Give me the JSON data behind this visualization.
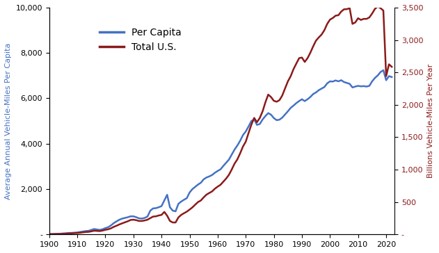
{
  "ylabel_left": "Average Annual Vehicle-Miles Per Capita",
  "ylabel_right": "Billions Vehicle-Miles Per Year",
  "left_color": "#4472C4",
  "right_color": "#8B1A1A",
  "legend_labels": [
    "Per Capita",
    "Total U.S."
  ],
  "ylim_left": [
    0,
    10000
  ],
  "ylim_right": [
    0,
    3500
  ],
  "xlim": [
    1900,
    2023
  ],
  "yticks_left": [
    0,
    2000,
    4000,
    6000,
    8000,
    10000
  ],
  "yticks_right": [
    0,
    500,
    1000,
    1500,
    2000,
    2500,
    3000,
    3500
  ],
  "xticks": [
    1900,
    1910,
    1920,
    1930,
    1940,
    1950,
    1960,
    1970,
    1980,
    1990,
    2000,
    2010,
    2020
  ],
  "per_capita": {
    "years": [
      1900,
      1901,
      1902,
      1903,
      1904,
      1905,
      1906,
      1907,
      1908,
      1909,
      1910,
      1911,
      1912,
      1913,
      1914,
      1915,
      1916,
      1917,
      1918,
      1919,
      1920,
      1921,
      1922,
      1923,
      1924,
      1925,
      1926,
      1927,
      1928,
      1929,
      1930,
      1931,
      1932,
      1933,
      1934,
      1935,
      1936,
      1937,
      1938,
      1939,
      1940,
      1941,
      1942,
      1943,
      1944,
      1945,
      1946,
      1947,
      1948,
      1949,
      1950,
      1951,
      1952,
      1953,
      1954,
      1955,
      1956,
      1957,
      1958,
      1959,
      1960,
      1961,
      1962,
      1963,
      1964,
      1965,
      1966,
      1967,
      1968,
      1969,
      1970,
      1971,
      1972,
      1973,
      1974,
      1975,
      1976,
      1977,
      1978,
      1979,
      1980,
      1981,
      1982,
      1983,
      1984,
      1985,
      1986,
      1987,
      1988,
      1989,
      1990,
      1991,
      1992,
      1993,
      1994,
      1995,
      1996,
      1997,
      1998,
      1999,
      2000,
      2001,
      2002,
      2003,
      2004,
      2005,
      2006,
      2007,
      2008,
      2009,
      2010,
      2011,
      2012,
      2013,
      2014,
      2015,
      2016,
      2017,
      2018,
      2019,
      2020,
      2021,
      2022
    ],
    "values": [
      20,
      22,
      25,
      30,
      35,
      45,
      55,
      65,
      70,
      80,
      90,
      110,
      130,
      150,
      160,
      200,
      240,
      220,
      200,
      230,
      280,
      320,
      400,
      500,
      580,
      650,
      700,
      730,
      760,
      800,
      800,
      760,
      710,
      700,
      730,
      790,
      1050,
      1150,
      1160,
      1200,
      1250,
      1500,
      1750,
      1200,
      1050,
      1020,
      1350,
      1450,
      1530,
      1600,
      1850,
      2000,
      2100,
      2200,
      2280,
      2430,
      2510,
      2560,
      2620,
      2720,
      2800,
      2870,
      3020,
      3160,
      3300,
      3520,
      3740,
      3920,
      4130,
      4380,
      4540,
      4760,
      5000,
      5070,
      4830,
      4870,
      5070,
      5220,
      5350,
      5280,
      5130,
      5040,
      5060,
      5150,
      5290,
      5430,
      5580,
      5680,
      5790,
      5880,
      5960,
      5880,
      5960,
      6060,
      6190,
      6260,
      6360,
      6430,
      6500,
      6660,
      6750,
      6740,
      6790,
      6750,
      6800,
      6720,
      6680,
      6640,
      6480,
      6520,
      6550,
      6530,
      6540,
      6520,
      6550,
      6750,
      6900,
      7010,
      7160,
      7240,
      6800,
      6980,
      6940
    ]
  },
  "total_us": {
    "years": [
      1900,
      1901,
      1902,
      1903,
      1904,
      1905,
      1906,
      1907,
      1908,
      1909,
      1910,
      1911,
      1912,
      1913,
      1914,
      1915,
      1916,
      1917,
      1918,
      1919,
      1920,
      1921,
      1922,
      1923,
      1924,
      1925,
      1926,
      1927,
      1928,
      1929,
      1930,
      1931,
      1932,
      1933,
      1934,
      1935,
      1936,
      1937,
      1938,
      1939,
      1940,
      1941,
      1942,
      1943,
      1944,
      1945,
      1946,
      1947,
      1948,
      1949,
      1950,
      1951,
      1952,
      1953,
      1954,
      1955,
      1956,
      1957,
      1958,
      1959,
      1960,
      1961,
      1962,
      1963,
      1964,
      1965,
      1966,
      1967,
      1968,
      1969,
      1970,
      1971,
      1972,
      1973,
      1974,
      1975,
      1976,
      1977,
      1978,
      1979,
      1980,
      1981,
      1982,
      1983,
      1984,
      1985,
      1986,
      1987,
      1988,
      1989,
      1990,
      1991,
      1992,
      1993,
      1994,
      1995,
      1996,
      1997,
      1998,
      1999,
      2000,
      2001,
      2002,
      2003,
      2004,
      2005,
      2006,
      2007,
      2008,
      2009,
      2010,
      2011,
      2012,
      2013,
      2014,
      2015,
      2016,
      2017,
      2018,
      2019,
      2020,
      2021,
      2022
    ],
    "values": [
      4,
      5,
      6,
      7,
      8,
      10,
      12,
      15,
      17,
      20,
      22,
      27,
      33,
      38,
      40,
      48,
      58,
      55,
      52,
      60,
      72,
      80,
      95,
      118,
      135,
      155,
      172,
      188,
      204,
      224,
      228,
      220,
      208,
      208,
      216,
      228,
      252,
      276,
      280,
      293,
      302,
      348,
      290,
      208,
      185,
      185,
      262,
      302,
      328,
      352,
      384,
      418,
      460,
      500,
      524,
      572,
      614,
      640,
      664,
      706,
      738,
      766,
      814,
      862,
      920,
      1002,
      1092,
      1158,
      1252,
      1356,
      1432,
      1566,
      1694,
      1798,
      1732,
      1798,
      1900,
      2040,
      2158,
      2120,
      2062,
      2048,
      2072,
      2144,
      2254,
      2362,
      2442,
      2550,
      2636,
      2720,
      2730,
      2662,
      2720,
      2804,
      2902,
      2990,
      3040,
      3084,
      3152,
      3248,
      3315,
      3340,
      3376,
      3383,
      3439,
      3474,
      3476,
      3492,
      3249,
      3271,
      3336,
      3310,
      3326,
      3326,
      3348,
      3408,
      3480,
      3518,
      3492,
      3454,
      2443,
      2625,
      2587
    ]
  }
}
